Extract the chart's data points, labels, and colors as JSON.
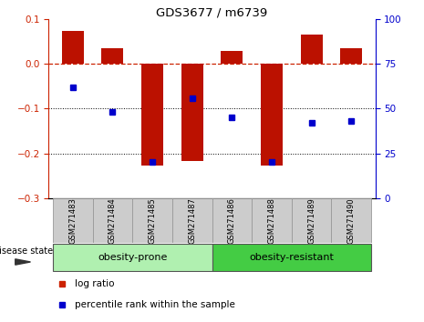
{
  "title": "GDS3677 / m6739",
  "samples": [
    "GSM271483",
    "GSM271484",
    "GSM271485",
    "GSM271487",
    "GSM271486",
    "GSM271488",
    "GSM271489",
    "GSM271490"
  ],
  "log_ratio": [
    0.075,
    0.035,
    -0.228,
    -0.218,
    0.03,
    -0.228,
    0.065,
    0.035
  ],
  "percentile_rank": [
    62,
    48,
    20,
    56,
    45,
    20,
    42,
    43
  ],
  "groups": [
    {
      "label": "obesity-prone",
      "start": 0,
      "end": 4,
      "color": "#b0f0b0"
    },
    {
      "label": "obesity-resistant",
      "start": 4,
      "end": 8,
      "color": "#44cc44"
    }
  ],
  "bar_color": "#bb1100",
  "dot_color": "#0000cc",
  "ref_line_color": "#cc2200",
  "ylim_left": [
    -0.3,
    0.1
  ],
  "ylim_right": [
    0,
    100
  ],
  "yticks_left": [
    -0.3,
    -0.2,
    -0.1,
    0.0,
    0.1
  ],
  "yticks_right": [
    0,
    25,
    50,
    75,
    100
  ],
  "background_color": "#ffffff",
  "plot_bg_color": "#ffffff",
  "left_axis_color": "#cc2200",
  "right_axis_color": "#0000cc",
  "grid_color": "#000000",
  "legend_items": [
    "log ratio",
    "percentile rank within the sample"
  ],
  "legend_colors": [
    "#cc2200",
    "#0000cc"
  ],
  "disease_state_label": "disease state",
  "sample_box_color": "#cccccc",
  "sample_box_edge": "#999999"
}
